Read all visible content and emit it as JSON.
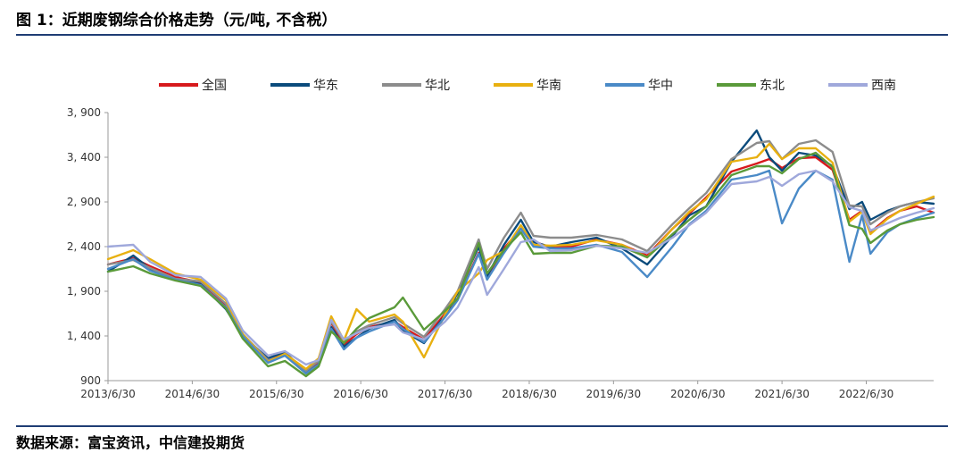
{
  "figure": {
    "title": "图 1：近期废钢综合价格走势（元/吨, 不含税）",
    "source": "数据来源：富宝资讯，中信建投期货"
  },
  "chart_data": {
    "type": "line",
    "title": "",
    "xlabel": "",
    "ylabel": "",
    "ylim": [
      900,
      3900
    ],
    "yticks": [
      900,
      1400,
      1900,
      2400,
      2900,
      3400,
      3900
    ],
    "ytick_labels": [
      "900",
      "1, 400",
      "1, 900",
      "2, 400",
      "2, 900",
      "3, 400",
      "3, 900"
    ],
    "xlim": [
      2013.5,
      2023.3
    ],
    "xticks": [
      2013.5,
      2014.5,
      2015.5,
      2016.5,
      2017.5,
      2018.5,
      2019.5,
      2020.5,
      2021.5,
      2022.5
    ],
    "xtick_labels": [
      "2013/6/30",
      "2014/6/30",
      "2015/6/30",
      "2016/6/30",
      "2017/6/30",
      "2018/6/30",
      "2019/6/30",
      "2020/6/30",
      "2021/6/30",
      "2022/6/30"
    ],
    "grid": false,
    "legend_position": "top",
    "x": [
      2013.5,
      2013.8,
      2014.0,
      2014.3,
      2014.6,
      2014.9,
      2015.1,
      2015.4,
      2015.6,
      2015.85,
      2016.0,
      2016.15,
      2016.3,
      2016.45,
      2016.6,
      2016.9,
      2017.0,
      2017.25,
      2017.5,
      2017.65,
      2017.9,
      2018.0,
      2018.2,
      2018.4,
      2018.55,
      2018.75,
      2019.0,
      2019.3,
      2019.6,
      2019.9,
      2020.2,
      2020.4,
      2020.6,
      2020.9,
      2021.2,
      2021.35,
      2021.5,
      2021.7,
      2021.9,
      2022.1,
      2022.3,
      2022.45,
      2022.55,
      2022.75,
      2022.9,
      2023.1,
      2023.3
    ],
    "series": [
      {
        "name": "全国",
        "color": "#d7191c",
        "values": [
          2200,
          2270,
          2180,
          2060,
          2000,
          1730,
          1380,
          1120,
          1200,
          1000,
          1110,
          1550,
          1300,
          1420,
          1500,
          1560,
          1500,
          1360,
          1650,
          1820,
          2330,
          2060,
          2380,
          2600,
          2460,
          2390,
          2400,
          2480,
          2420,
          2300,
          2600,
          2770,
          2950,
          3240,
          3330,
          3380,
          3280,
          3390,
          3400,
          3260,
          2700,
          2800,
          2560,
          2720,
          2800,
          2850,
          2780
        ]
      },
      {
        "name": "华东",
        "color": "#0b4b7c",
        "values": [
          2120,
          2300,
          2150,
          2040,
          1980,
          1700,
          1400,
          1150,
          1220,
          990,
          1080,
          1500,
          1280,
          1380,
          1480,
          1580,
          1460,
          1320,
          1630,
          1880,
          2400,
          2070,
          2420,
          2700,
          2450,
          2400,
          2450,
          2500,
          2380,
          2200,
          2520,
          2750,
          2850,
          3350,
          3700,
          3400,
          3250,
          3450,
          3420,
          3300,
          2820,
          2900,
          2700,
          2800,
          2850,
          2900,
          2880
        ]
      },
      {
        "name": "华北",
        "color": "#8c8c8c",
        "values": [
          2200,
          2250,
          2160,
          2040,
          2010,
          1760,
          1420,
          1130,
          1180,
          1010,
          1120,
          1560,
          1340,
          1450,
          1520,
          1610,
          1540,
          1390,
          1700,
          1900,
          2480,
          2150,
          2500,
          2780,
          2520,
          2500,
          2500,
          2530,
          2480,
          2350,
          2650,
          2830,
          3000,
          3380,
          3560,
          3580,
          3380,
          3550,
          3590,
          3460,
          2860,
          2850,
          2650,
          2780,
          2850,
          2900,
          2940
        ]
      },
      {
        "name": "华南",
        "color": "#e8b010",
        "values": [
          2260,
          2360,
          2260,
          2100,
          2030,
          1800,
          1420,
          1110,
          1200,
          1030,
          1150,
          1620,
          1350,
          1700,
          1560,
          1640,
          1560,
          1160,
          1640,
          1900,
          2100,
          2250,
          2350,
          2640,
          2420,
          2410,
          2420,
          2470,
          2420,
          2280,
          2600,
          2790,
          2930,
          3350,
          3400,
          3550,
          3380,
          3500,
          3500,
          3340,
          2680,
          2790,
          2540,
          2710,
          2800,
          2880,
          2960
        ]
      },
      {
        "name": "华中",
        "color": "#4a8ac7",
        "values": [
          2150,
          2260,
          2130,
          2030,
          1970,
          1720,
          1400,
          1100,
          1180,
          980,
          1080,
          1480,
          1250,
          1380,
          1450,
          1560,
          1480,
          1330,
          1610,
          1800,
          2320,
          2030,
          2330,
          2600,
          2400,
          2380,
          2380,
          2420,
          2340,
          2060,
          2400,
          2650,
          2800,
          3150,
          3200,
          3250,
          2660,
          3050,
          3250,
          3150,
          2230,
          2750,
          2320,
          2560,
          2650,
          2720,
          2780
        ]
      },
      {
        "name": "东北",
        "color": "#5a9a3a",
        "values": [
          2120,
          2180,
          2100,
          2020,
          1960,
          1710,
          1370,
          1060,
          1120,
          950,
          1060,
          1450,
          1320,
          1480,
          1600,
          1720,
          1830,
          1470,
          1680,
          1820,
          2440,
          2100,
          2360,
          2560,
          2320,
          2330,
          2330,
          2410,
          2400,
          2280,
          2540,
          2700,
          2850,
          3200,
          3300,
          3300,
          3220,
          3380,
          3450,
          3290,
          2640,
          2600,
          2440,
          2580,
          2650,
          2700,
          2730
        ]
      },
      {
        "name": "西南",
        "color": "#9fa8db",
        "values": [
          2400,
          2420,
          2230,
          2080,
          2060,
          1820,
          1460,
          1180,
          1230,
          1080,
          1130,
          1580,
          1360,
          1430,
          1490,
          1530,
          1440,
          1360,
          1560,
          1720,
          2170,
          1860,
          2150,
          2450,
          2480,
          2350,
          2360,
          2410,
          2380,
          2330,
          2500,
          2640,
          2780,
          3100,
          3130,
          3180,
          3080,
          3210,
          3250,
          3130,
          2840,
          2800,
          2580,
          2660,
          2720,
          2780,
          2830
        ]
      }
    ]
  }
}
